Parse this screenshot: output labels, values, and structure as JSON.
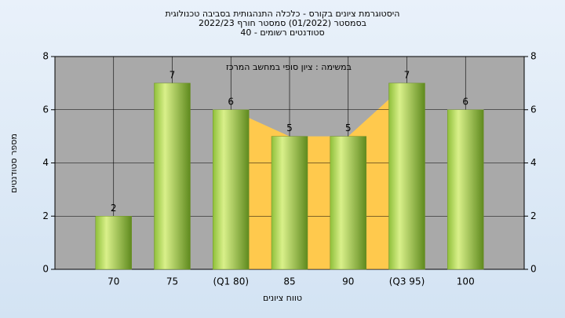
{
  "chart_data": {
    "type": "bar",
    "title": "היסטוגרמת ציונים בקורס - כלכלה התנהגותית בסביבה טכנולוגית",
    "subtitle": "בסמסטר  (01/2022)  סמסטר חורף  2022/23",
    "subtitle2": "סטודנטים רשומים - 40",
    "annotation": "במשימה : ציון סופי במחשב המרכז",
    "ylabel": "מספר סטודנטים",
    "xlabel": "טווח ציונים",
    "categories": [
      "70",
      "75",
      "(Q1 80)",
      "85",
      "90",
      "(Q3 95)",
      "100"
    ],
    "values": [
      2,
      7,
      6,
      5,
      5,
      7,
      6
    ],
    "color": "#9acd32",
    "ylim": [
      0,
      8
    ],
    "yticks": [
      0,
      2,
      4,
      6,
      8
    ],
    "y2lim": [
      0,
      8
    ],
    "y2ticks": [
      0,
      2,
      4,
      6,
      8
    ],
    "grid": true
  }
}
